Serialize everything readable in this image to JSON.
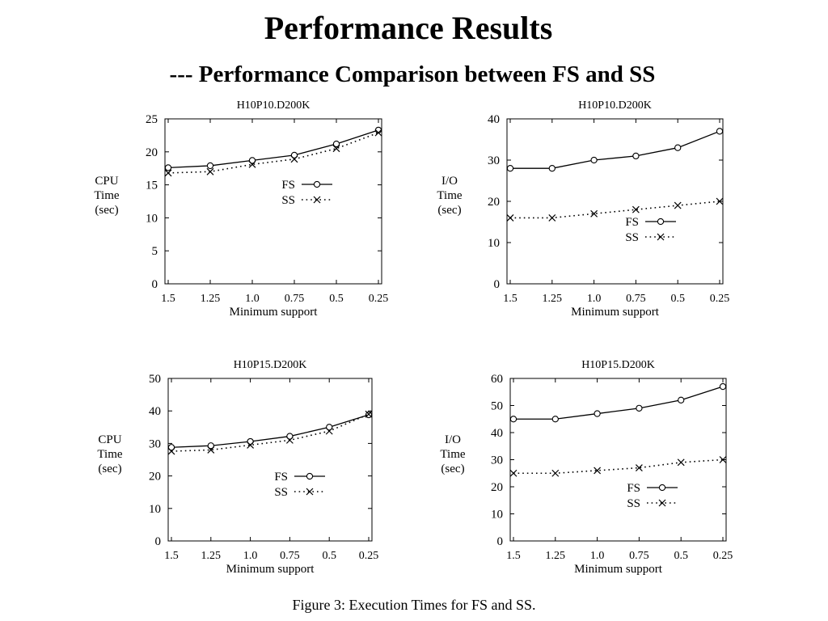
{
  "title": "Performance Results",
  "subtitle": "--- Performance Comparison between FS and SS",
  "caption": "Figure 3: Execution Times for FS and SS.",
  "colors": {
    "line": "#000000",
    "background": "#ffffff"
  },
  "chart_data": [
    {
      "type": "line",
      "title": "H10P10.D200K",
      "xlabel": "Minimum support",
      "ylabel": [
        "CPU",
        "Time",
        "(sec)"
      ],
      "categories": [
        "1.5",
        "1.25",
        "1.0",
        "0.75",
        "0.5",
        "0.25"
      ],
      "ylim": [
        0,
        25
      ],
      "yticks": [
        0,
        5,
        10,
        15,
        20,
        25
      ],
      "legend_position": "upper-right",
      "series": [
        {
          "name": "FS",
          "values": [
            17.6,
            17.9,
            18.7,
            19.5,
            21.2,
            23.3
          ],
          "style": "solid",
          "marker": "circle"
        },
        {
          "name": "SS",
          "values": [
            16.8,
            17.0,
            18.1,
            18.9,
            20.5,
            22.9
          ],
          "style": "dotted",
          "marker": "x"
        }
      ]
    },
    {
      "type": "line",
      "title": "H10P10.D200K",
      "xlabel": "Minimum support",
      "ylabel": [
        "I/O",
        "Time",
        "(sec)"
      ],
      "categories": [
        "1.5",
        "1.25",
        "1.0",
        "0.75",
        "0.5",
        "0.25"
      ],
      "ylim": [
        0,
        40
      ],
      "yticks": [
        0,
        10,
        20,
        30,
        40
      ],
      "legend_position": "center-right",
      "series": [
        {
          "name": "FS",
          "values": [
            28,
            28,
            30,
            31,
            33,
            37
          ],
          "style": "solid",
          "marker": "circle"
        },
        {
          "name": "SS",
          "values": [
            16,
            16,
            17,
            18,
            19,
            20
          ],
          "style": "dotted",
          "marker": "x"
        }
      ]
    },
    {
      "type": "line",
      "title": "H10P15.D200K",
      "xlabel": "Minimum support",
      "ylabel": [
        "CPU",
        "Time",
        "(sec)"
      ],
      "categories": [
        "1.5",
        "1.25",
        "1.0",
        "0.75",
        "0.5",
        "0.25"
      ],
      "ylim": [
        0,
        50
      ],
      "yticks": [
        0,
        10,
        20,
        30,
        40,
        50
      ],
      "legend_position": "lower-right",
      "series": [
        {
          "name": "FS",
          "values": [
            28.8,
            29.3,
            30.6,
            32.2,
            35.0,
            38.8
          ],
          "style": "solid",
          "marker": "circle"
        },
        {
          "name": "SS",
          "values": [
            27.6,
            28.0,
            29.5,
            31.0,
            33.8,
            39.0
          ],
          "style": "dotted",
          "marker": "x"
        }
      ]
    },
    {
      "type": "line",
      "title": "H10P15.D200K",
      "xlabel": "Minimum support",
      "ylabel": [
        "I/O",
        "Time",
        "(sec)"
      ],
      "categories": [
        "1.5",
        "1.25",
        "1.0",
        "0.75",
        "0.5",
        "0.25"
      ],
      "ylim": [
        0,
        60
      ],
      "yticks": [
        0,
        10,
        20,
        30,
        40,
        50,
        60
      ],
      "legend_position": "lower-right",
      "series": [
        {
          "name": "FS",
          "values": [
            45,
            45,
            47,
            49,
            52,
            57
          ],
          "style": "solid",
          "marker": "circle"
        },
        {
          "name": "SS",
          "values": [
            25,
            25,
            26,
            27,
            29,
            30
          ],
          "style": "dotted",
          "marker": "x"
        }
      ]
    }
  ]
}
